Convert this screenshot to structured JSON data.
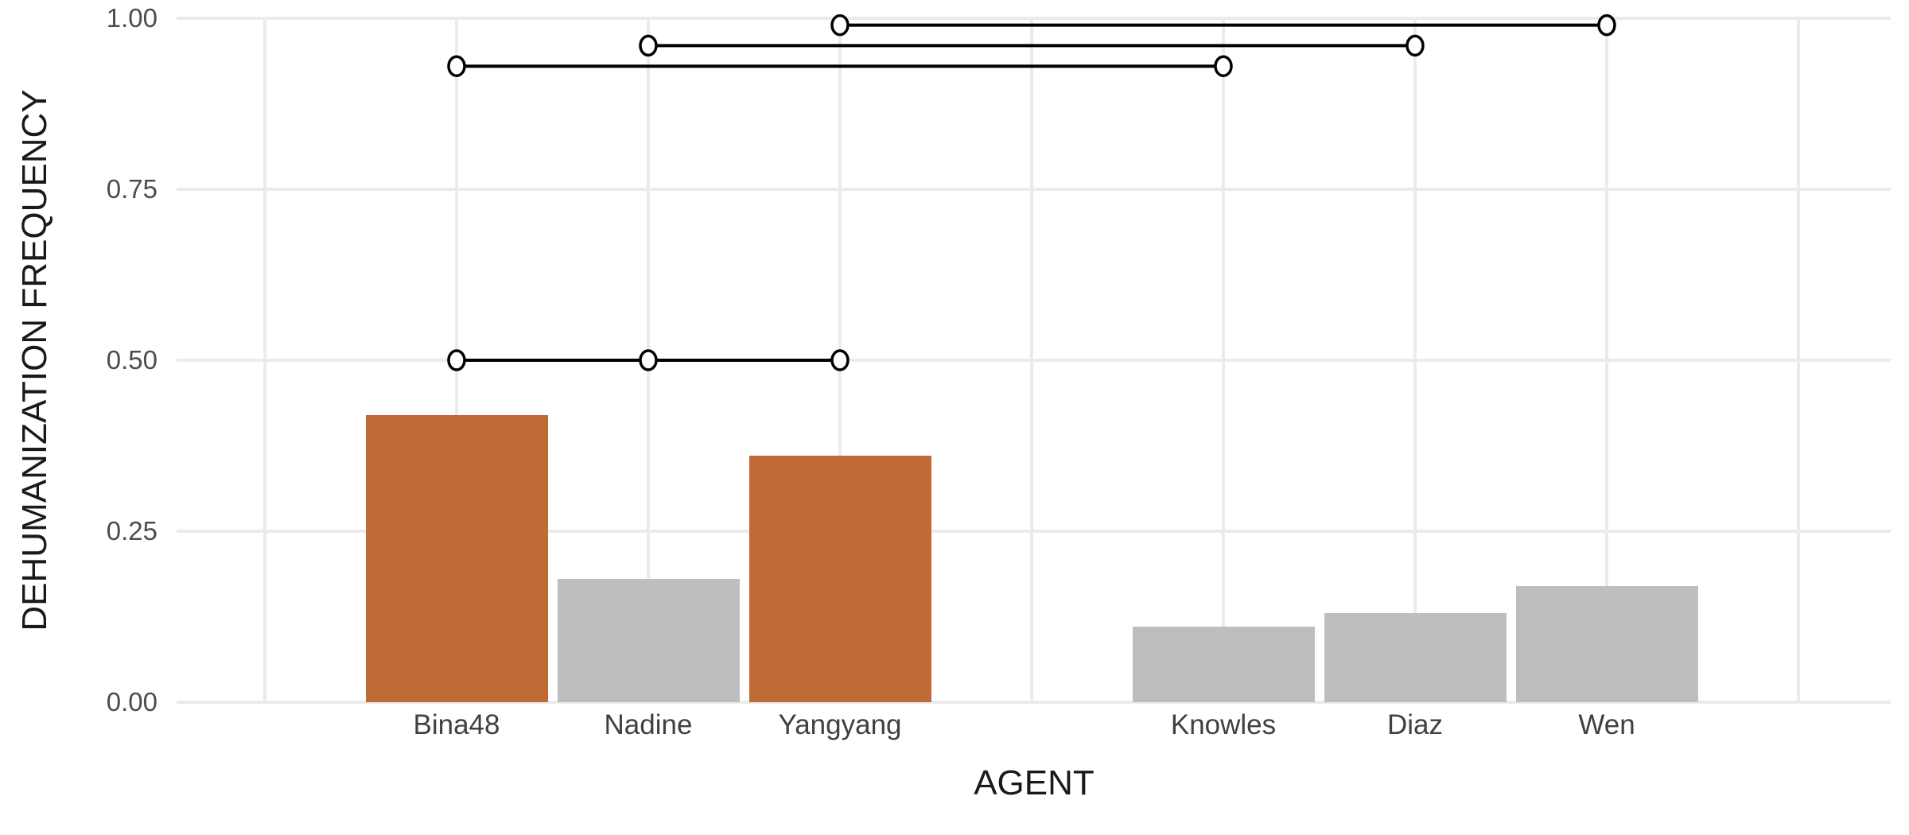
{
  "chart_data": {
    "type": "bar",
    "title": "",
    "xlabel": "AGENT",
    "ylabel": "DEHUMANIZATION FREQUENCY",
    "categories": [
      "Bina48",
      "Nadine",
      "Yangyang",
      "Knowles",
      "Diaz",
      "Wen"
    ],
    "series": [
      {
        "name": "dehumanization_frequency",
        "values": [
          0.42,
          0.18,
          0.36,
          0.11,
          0.13,
          0.17
        ]
      }
    ],
    "bar_groups": [
      1,
      1,
      1,
      2,
      2,
      2
    ],
    "highlighted": [
      true,
      false,
      true,
      false,
      false,
      false
    ],
    "yticks": [
      0,
      0.25,
      0.5,
      0.75,
      1.0
    ],
    "ytick_labels": [
      "0.00",
      "0.25",
      "0.50",
      "0.75",
      "1.00"
    ],
    "ylim": [
      0,
      1.0
    ],
    "grid": true,
    "legend_position": "none",
    "annotations": {
      "significance_brackets": [
        {
          "from": "Bina48",
          "to": "Yangyang",
          "through": [
            "Nadine"
          ],
          "height": 0.5
        },
        {
          "from": "Bina48",
          "to": "Knowles",
          "through": [],
          "height": 0.93
        },
        {
          "from": "Nadine",
          "to": "Diaz",
          "through": [],
          "height": 0.96
        },
        {
          "from": "Yangyang",
          "to": "Wen",
          "through": [],
          "height": 0.99
        }
      ]
    },
    "colors": {
      "highlight_bar": "#c06a35",
      "default_bar": "#bebebe",
      "grid": "#ebebeb",
      "tick_label": "#4d4d4d",
      "axis_title": "#1a1a1a",
      "bracket_line": "#000000",
      "bracket_point_fill": "#ffffff",
      "background": "#ffffff"
    }
  }
}
